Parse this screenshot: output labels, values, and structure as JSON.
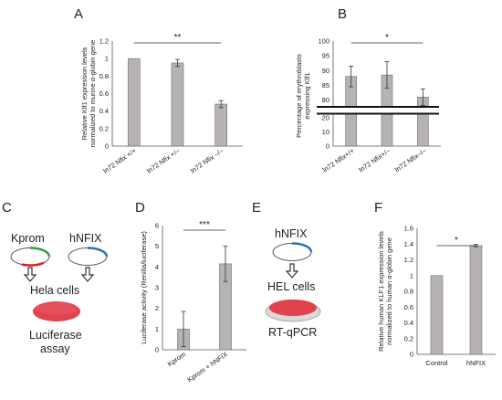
{
  "figure": {
    "panel_labels": {
      "A": "A",
      "B": "B",
      "C": "C",
      "D": "D",
      "E": "E",
      "F": "F"
    }
  },
  "colors": {
    "bar": "#b7b3b5",
    "bar_edge": "#6e6e6e",
    "dish": "#e2414f",
    "plasmid_green": "#3a9a3a",
    "plasmid_red": "#e0211a",
    "plasmid_blue": "#2a6fb5"
  },
  "schematic_c": {
    "plasmid1": "Kprom",
    "plasmid2": "hNFIX",
    "cells": "Hela cells",
    "assay_line1": "Luciferase",
    "assay_line2": "assay"
  },
  "schematic_e": {
    "plasmid": "hNFIX",
    "cells": "HEL cells",
    "assay": "RT-qPCR"
  },
  "chart_data": [
    {
      "panel": "A",
      "type": "bar",
      "categories": [
        "ln72 Nfix +/+",
        "ln72 Nfix +/–",
        "ln72 Nfix –/–"
      ],
      "values": [
        1.0,
        0.95,
        0.48
      ],
      "errors": [
        0.0,
        0.04,
        0.04
      ],
      "ylim": [
        0,
        1.2
      ],
      "yticks": [
        "0",
        "0.2",
        "0.4",
        "0.6",
        "0.8",
        "1",
        "1.2"
      ],
      "ylabel_lines": [
        "Relative Klf1 expression levels",
        "normalized to murine α-globin gene"
      ],
      "significance": "**"
    },
    {
      "panel": "B",
      "type": "bar",
      "axis_break": true,
      "categories": [
        "ln72 Nfix+/+",
        "ln72 Nfix+/–",
        "ln72 Nfix–/–"
      ],
      "values": [
        88,
        88.5,
        81
      ],
      "errors": [
        3.5,
        4.5,
        2.8
      ],
      "yticks_lower": [
        "0",
        "10",
        "20"
      ],
      "yticks_upper": [
        "80",
        "85",
        "90",
        "95",
        "100"
      ],
      "ylabel_lines": [
        "Percentage of erythroblasts",
        "expressing Klf1"
      ],
      "significance": "*"
    },
    {
      "panel": "D",
      "type": "bar",
      "categories": [
        "Kprom",
        "Kprom + hNFIX"
      ],
      "values": [
        1.0,
        4.15
      ],
      "errors": [
        0.85,
        0.85
      ],
      "ylim": [
        0,
        6
      ],
      "yticks": [
        "0",
        "1",
        "2",
        "3",
        "4",
        "5",
        "6"
      ],
      "ylabel_lines": [
        "Luciferase activity (Renilla/luciferase)"
      ],
      "significance": "***"
    },
    {
      "panel": "F",
      "type": "bar",
      "categories": [
        "Control",
        "hNFIX"
      ],
      "values": [
        1.0,
        1.38
      ],
      "errors": [
        0.0,
        0.015
      ],
      "ylim": [
        0,
        1.6
      ],
      "yticks": [
        "0",
        "0.2",
        "0.4",
        "0.6",
        "0.8",
        "1",
        "1.2",
        "1.4",
        "1.6"
      ],
      "ylabel_lines": [
        "Relative human KLF1 expression levels",
        "normalized to human α-globin gene"
      ],
      "significance": "*"
    }
  ]
}
